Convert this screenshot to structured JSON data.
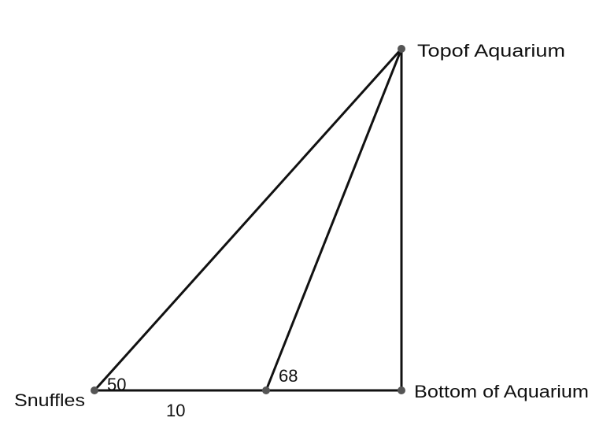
{
  "points": {
    "snuffles": {
      "label": "Snuffles"
    },
    "top": {
      "label": "Topof Aquarium"
    },
    "bottom": {
      "label": "Bottom of Aquarium"
    },
    "middle": {
      "label": ""
    }
  },
  "angles": {
    "snuffles_angle": "50",
    "middle_angle": "68"
  },
  "segments": {
    "snuffles_to_middle_length": "10"
  },
  "colors": {
    "line": "#111111",
    "point": "#555555",
    "text": "#111111"
  }
}
